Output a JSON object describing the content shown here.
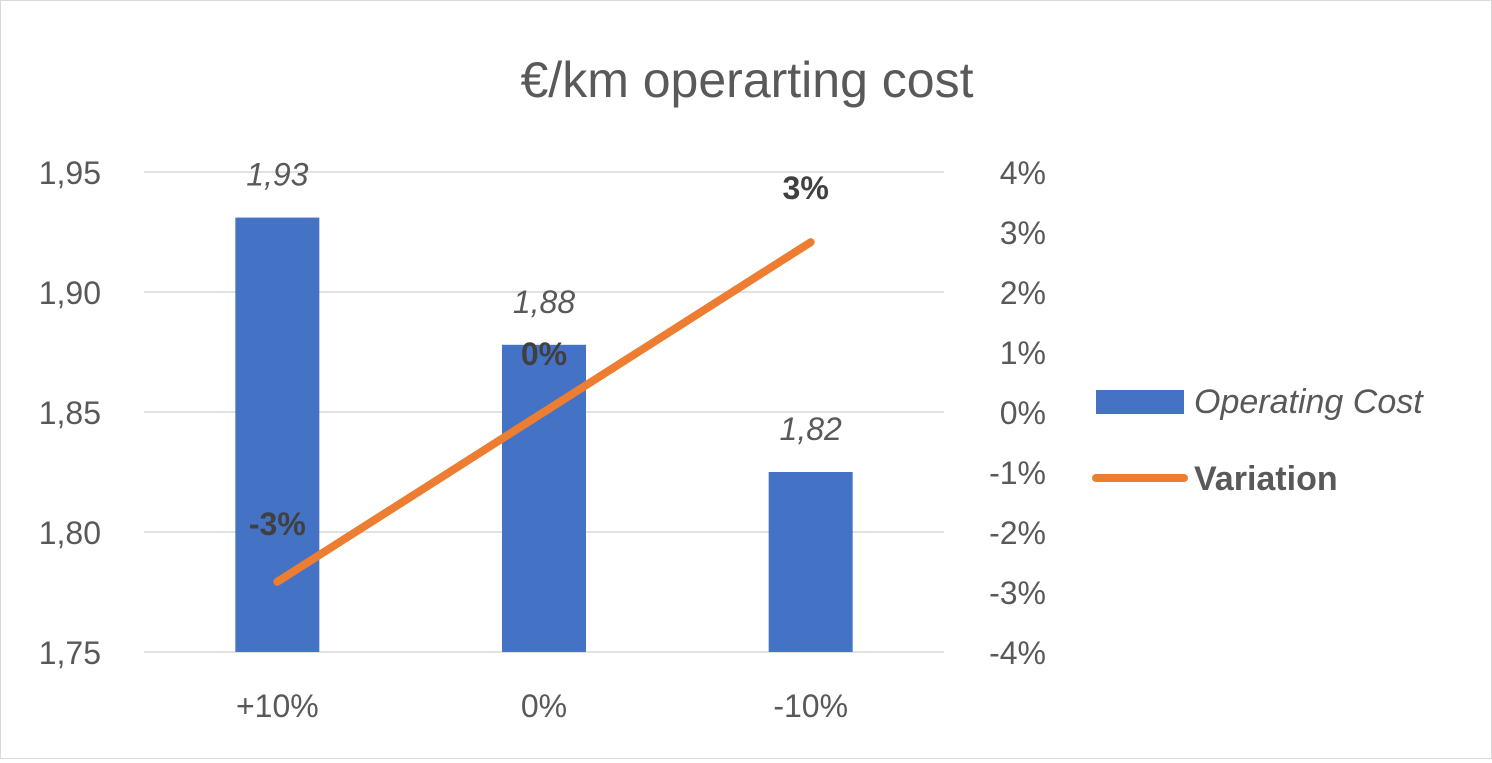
{
  "chart_data": {
    "type": "bar",
    "title": "€/km operarting cost",
    "categories": [
      "+10%",
      "0%",
      "-10%"
    ],
    "series": [
      {
        "name": "Operating Cost",
        "kind": "bar",
        "axis": "left",
        "color": "#4472C4",
        "values": [
          1.931,
          1.878,
          1.825
        ],
        "labels": [
          "1,93",
          "1,88",
          "1,82"
        ],
        "label_style": "italic"
      },
      {
        "name": "Variation",
        "kind": "line",
        "axis": "right",
        "color": "#ED7D31",
        "values": [
          -0.0283,
          0,
          0.0283
        ],
        "labels": [
          "-3%",
          "0%",
          "3%"
        ],
        "label_style": "bold"
      }
    ],
    "y_left": {
      "ylim": [
        1.75,
        1.95
      ],
      "ticks": [
        1.95,
        1.9,
        1.85,
        1.8,
        1.75
      ],
      "tick_labels": [
        "1,95",
        "1,90",
        "1,85",
        "1,80",
        "1,75"
      ]
    },
    "y_right": {
      "ylim": [
        -0.04,
        0.04
      ],
      "ticks": [
        0.04,
        0.03,
        0.02,
        0.01,
        0,
        -0.01,
        -0.02,
        -0.03,
        -0.04
      ],
      "tick_labels": [
        "4%",
        "3%",
        "2%",
        "1%",
        "0%",
        "-1%",
        "-2%",
        "-3%",
        "-4%"
      ]
    },
    "grid": true,
    "legend_position": "right",
    "text_color": "#595959",
    "grid_color": "#d9d9d9"
  }
}
